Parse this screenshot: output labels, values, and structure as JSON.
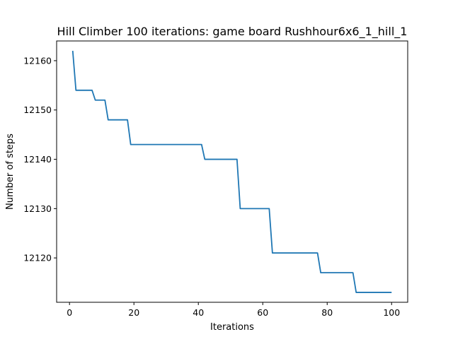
{
  "chart_data": {
    "type": "line",
    "title": "Hill Climber 100 iterations: game board Rushhour6x6_1_hill_1",
    "xlabel": "Iterations",
    "ylabel": "Number of steps",
    "xlim": [
      -4,
      105
    ],
    "ylim": [
      12111,
      12164
    ],
    "xticks": [
      0,
      20,
      40,
      60,
      80,
      100
    ],
    "yticks": [
      12120,
      12130,
      12140,
      12150,
      12160
    ],
    "grid": false,
    "series": [
      {
        "color": "#1f77b4",
        "x": [
          1,
          2,
          7,
          8,
          10,
          11,
          12,
          18,
          19,
          41,
          42,
          52,
          53,
          62,
          63,
          77,
          78,
          88,
          89,
          100
        ],
        "y": [
          12162,
          12154,
          12154,
          12152,
          12152,
          12152,
          12148,
          12148,
          12143,
          12143,
          12140,
          12140,
          12130,
          12130,
          12121,
          12121,
          12117,
          12117,
          12113,
          12113
        ]
      }
    ]
  }
}
